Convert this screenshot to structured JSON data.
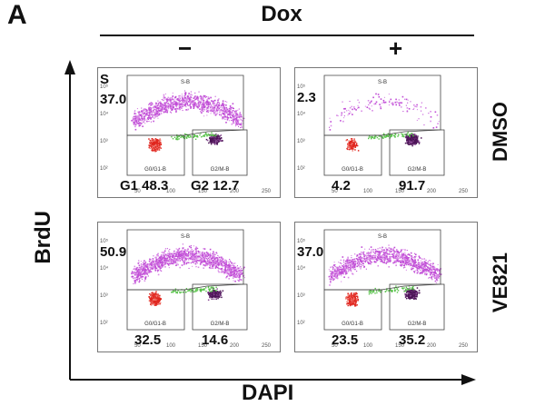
{
  "figure": {
    "panel_letter": "A",
    "dox_title": "Dox",
    "conditions": [
      "−",
      "+"
    ],
    "row_labels": [
      "DMSO",
      "VE821"
    ],
    "y_axis_label": "BrdU",
    "x_axis_label": "DAPI",
    "gates": {
      "s": "S-B",
      "g0g1": "G0/G1-B",
      "g2m": "G2/M-B"
    },
    "x_ticks": [
      "50",
      "100",
      "150",
      "200",
      "250"
    ],
    "y_ticks": [
      "10²",
      "10³",
      "10⁴",
      "10⁵"
    ],
    "plots": [
      {
        "id": "dmso-minus",
        "s_label": "S",
        "s_value": "37.0",
        "g1_value": "G1 48.3",
        "g2_value": "G2 12.7"
      },
      {
        "id": "dmso-plus",
        "s_label": "",
        "s_value": "2.3",
        "g1_value": "4.2",
        "g2_value": "91.7"
      },
      {
        "id": "ve821-minus",
        "s_label": "",
        "s_value": "50.9",
        "g1_value": "32.5",
        "g2_value": "14.6"
      },
      {
        "id": "ve821-plus",
        "s_label": "",
        "s_value": "37.0",
        "g1_value": "23.5",
        "g2_value": "35.2"
      }
    ],
    "colors": {
      "s_phase": "#c04cd6",
      "g1_phase": "#e0261f",
      "g2_phase": "#4d1557",
      "green_band": "#58c24a"
    }
  }
}
